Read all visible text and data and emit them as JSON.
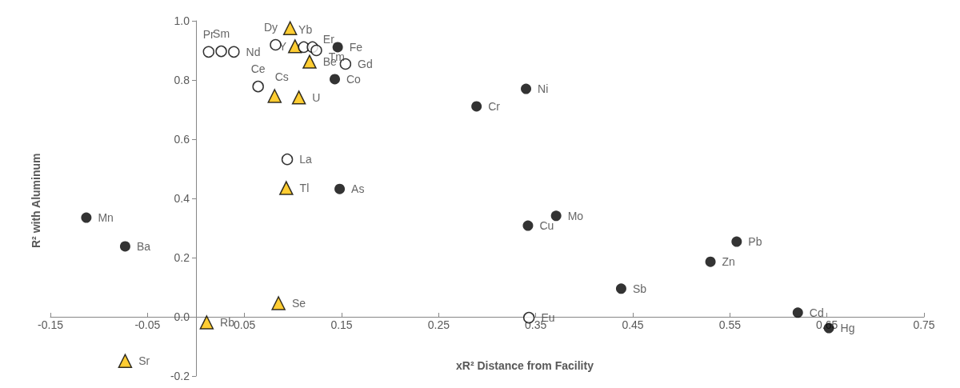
{
  "chart_data": {
    "type": "scatter",
    "xlabel": "xR² Distance from Facility",
    "ylabel": "R² with Aluminum",
    "xlim": [
      -0.15,
      0.75
    ],
    "ylim": [
      -0.2,
      1.0
    ],
    "xticks": [
      -0.15,
      -0.05,
      0.05,
      0.15,
      0.25,
      0.35,
      0.45,
      0.55,
      0.65,
      0.75
    ],
    "yticks": [
      -0.2,
      {
        "value": 0,
        "label": "0.0"
      },
      0.2,
      0.4,
      0.6,
      0.8,
      {
        "value": 1,
        "label": "1.0"
      }
    ],
    "grid": false,
    "series": [
      {
        "color": "#000000",
        "marker": "circle",
        "x": [
          -0.113,
          -0.073,
          0.148,
          0.146,
          0.143,
          0.34,
          0.289,
          0.371,
          0.342,
          0.557,
          0.53,
          0.438,
          0.62,
          0.652
        ],
        "values": [
          0.335,
          0.238,
          0.432,
          0.911,
          0.803,
          0.77,
          0.711,
          0.341,
          0.308,
          0.254,
          0.186,
          0.095,
          0.014,
          -0.038
        ],
        "value_labels": [
          "Mn",
          "Ba",
          "As",
          "Fe",
          "Co",
          "Ni",
          "Cr",
          "Mo",
          "Cu",
          "Pb",
          "Zn",
          "Sb",
          "Cd",
          "Hg"
        ]
      },
      {
        "color": "#ffffff",
        "marker": "circle",
        "x": [
          0.013,
          0.026,
          0.039,
          0.082,
          0.111,
          0.12,
          0.124,
          0.154,
          0.064,
          0.094,
          0.343
        ],
        "values": [
          0.895,
          0.897,
          0.895,
          0.919,
          0.911,
          0.911,
          0.9,
          0.854,
          0.778,
          0.532,
          -0.003
        ],
        "value_labels": [
          "Pr",
          "Sm",
          "Nd",
          "Dy",
          "Yb",
          "Er",
          "Tm",
          "Gd",
          "Ce",
          "La",
          "Eu"
        ]
      },
      {
        "color": "#ffc000",
        "marker": "triangle",
        "x": [
          0.097,
          0.102,
          0.117,
          0.081,
          0.106,
          0.093,
          0.085,
          0.011,
          -0.073
        ],
        "values": [
          0.975,
          0.914,
          0.862,
          0.746,
          0.741,
          0.435,
          0.046,
          -0.019,
          -0.149
        ],
        "value_labels": [
          null,
          "Y",
          "Be",
          "Cs",
          "U",
          "Tl",
          "Se",
          "Rb",
          "Sr"
        ]
      }
    ]
  }
}
